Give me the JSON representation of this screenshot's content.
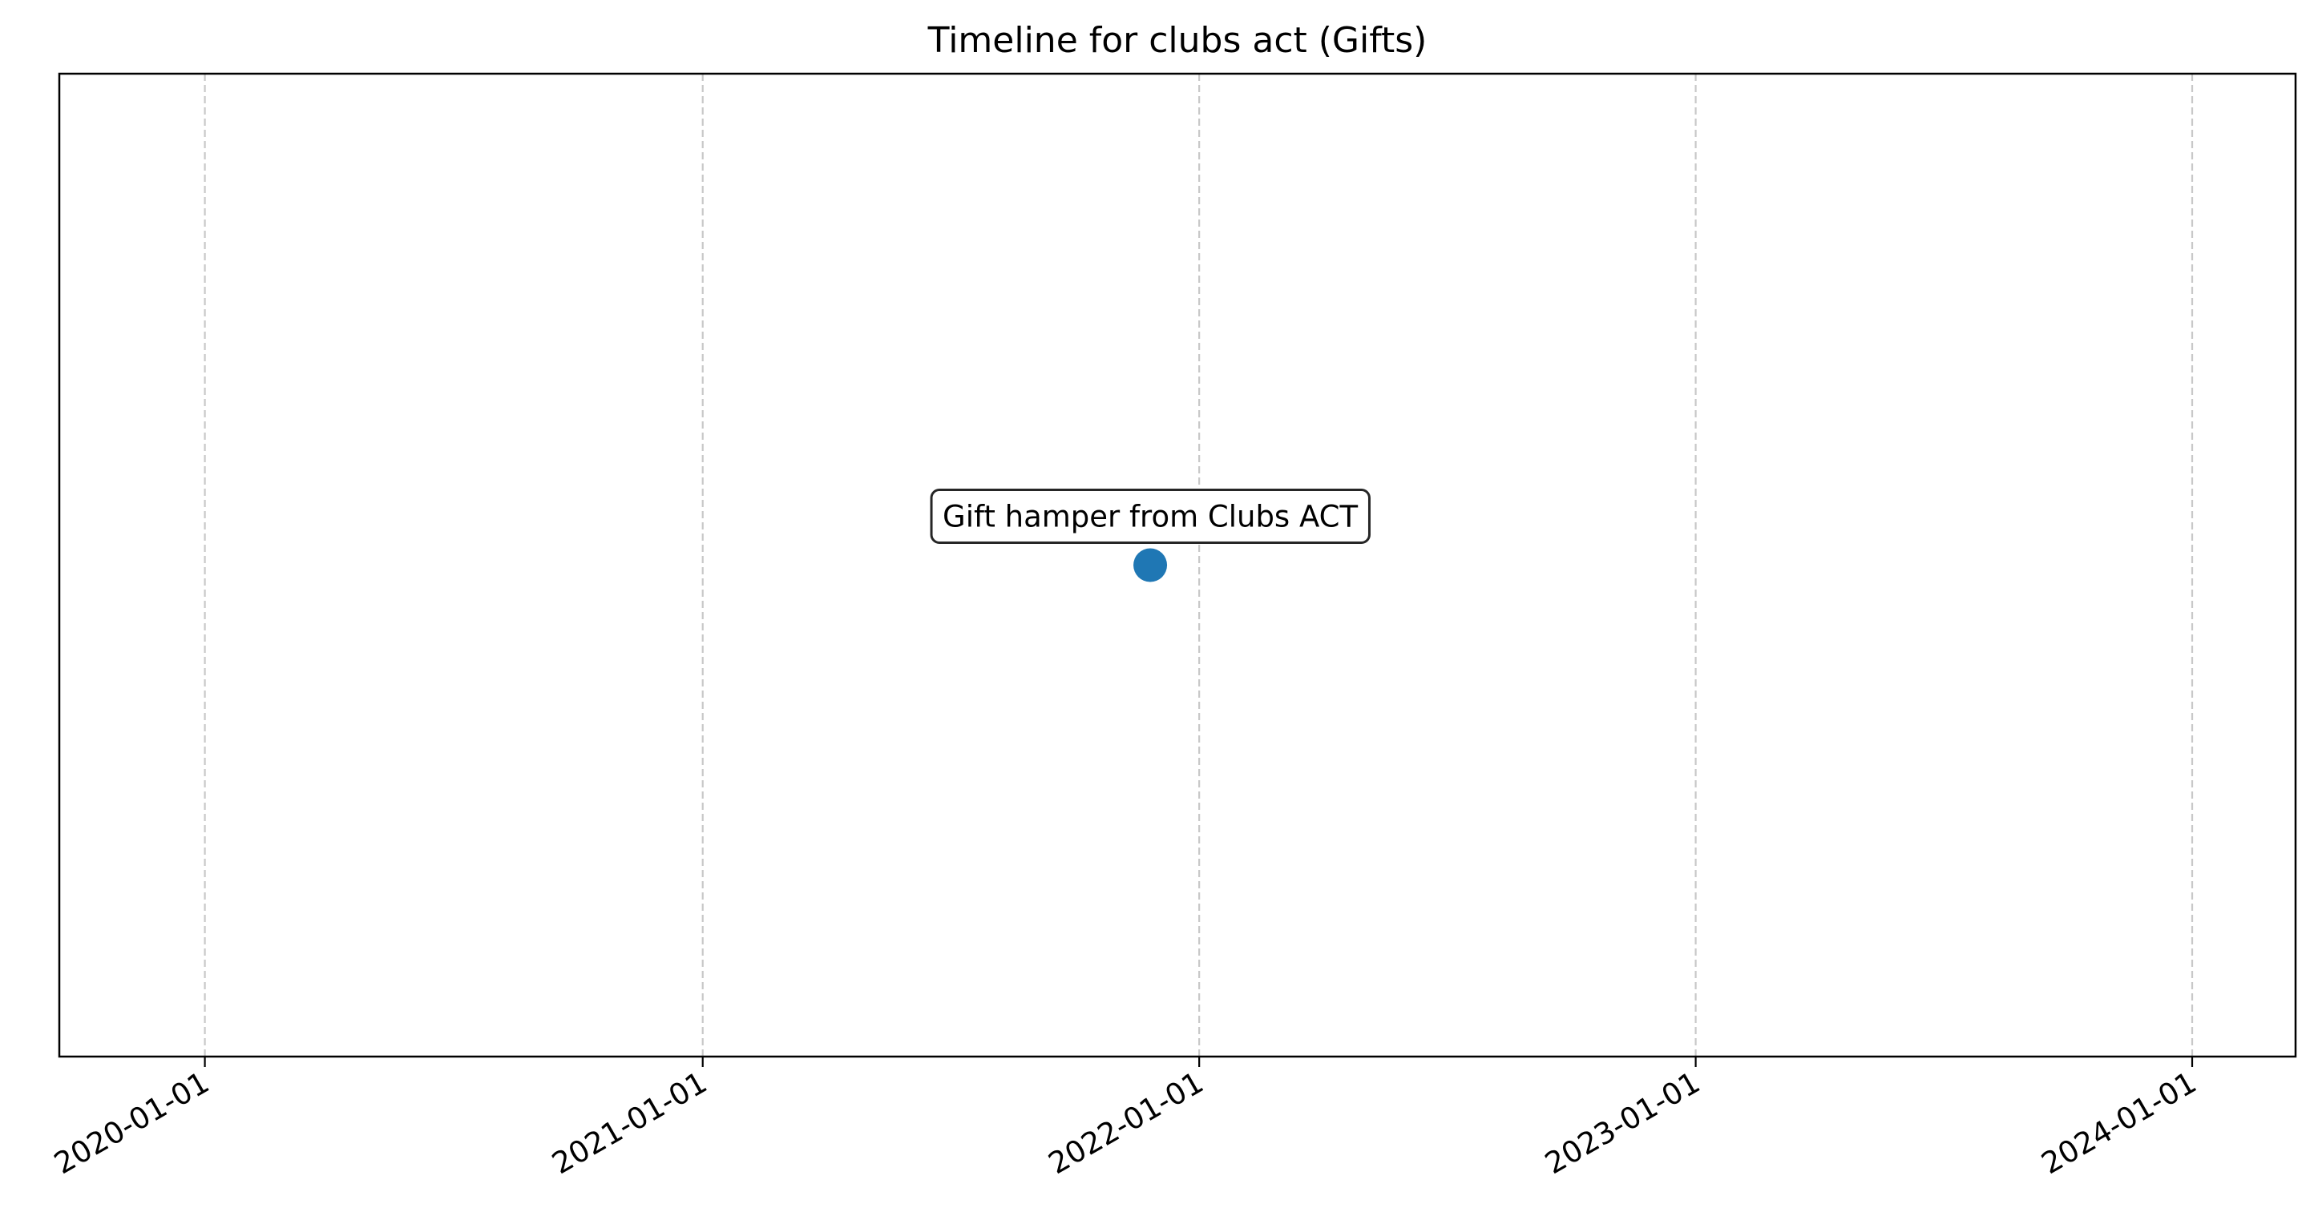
{
  "chart_data": {
    "type": "scatter",
    "title": "Timeline for clubs act (Gifts)",
    "xlabel": "",
    "ylabel": "",
    "x_axis": {
      "type": "date",
      "range": [
        "2019-09-16",
        "2024-03-17"
      ],
      "ticks": [
        "2020-01-01",
        "2021-01-01",
        "2022-01-01",
        "2023-01-01",
        "2024-01-01"
      ],
      "tick_label_rotation_deg": 30
    },
    "y_axis": {
      "range": [
        0,
        2
      ],
      "ticks_visible": false
    },
    "grid": {
      "x": true,
      "y": false,
      "style": "dashed",
      "color": "#c8c8c8"
    },
    "legend": "none",
    "points": [
      {
        "date": "2021-11-26",
        "y": 1,
        "label": "Gift hamper from Clubs ACT"
      }
    ],
    "colors": {
      "point": "#1f77b4",
      "axes": "#000000",
      "annotation_border": "#262626",
      "annotation_fill": "#ffffff"
    }
  }
}
